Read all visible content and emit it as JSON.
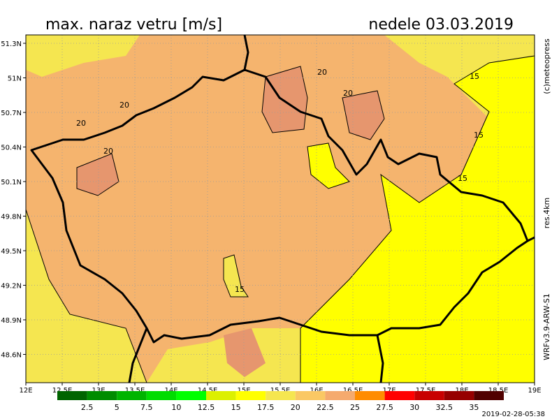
{
  "header": {
    "title": "max. naraz vetru [m/s]",
    "date": "nedele 03.03.2019"
  },
  "side_labels": {
    "copyright": "(c)meteopress",
    "resolution": "res.4km",
    "model": "WRFv3.9-ARW-S1"
  },
  "timestamp": "2019-02-28-05:38",
  "axes": {
    "lat_ticks": [
      "51.3N",
      "51N",
      "50.7N",
      "50.4N",
      "50.1N",
      "49.8N",
      "49.5N",
      "49.2N",
      "48.9N",
      "48.6N"
    ],
    "lon_ticks": [
      "12E",
      "12.5E",
      "13E",
      "13.5E",
      "14E",
      "14.5E",
      "15E",
      "15.5E",
      "16E",
      "16.5E",
      "17E",
      "17.5E",
      "18E",
      "18.5E",
      "19E"
    ]
  },
  "contour_labels": [
    "20",
    "20",
    "20",
    "20",
    "20",
    "15",
    "15",
    "15",
    "15"
  ],
  "legend": {
    "colors": [
      "#006400",
      "#008c00",
      "#00b400",
      "#00dc00",
      "#00ff00",
      "#dcf000",
      "#ffff00",
      "#f5e650",
      "#fac864",
      "#f5aa6e",
      "#ff8c00",
      "#ff0000",
      "#c80000",
      "#960000",
      "#500000"
    ],
    "labels": [
      "2.5",
      "5",
      "7.5",
      "10",
      "12.5",
      "15",
      "17.5",
      "20",
      "22.5",
      "25",
      "27.5",
      "30",
      "32.5",
      "35"
    ]
  }
}
